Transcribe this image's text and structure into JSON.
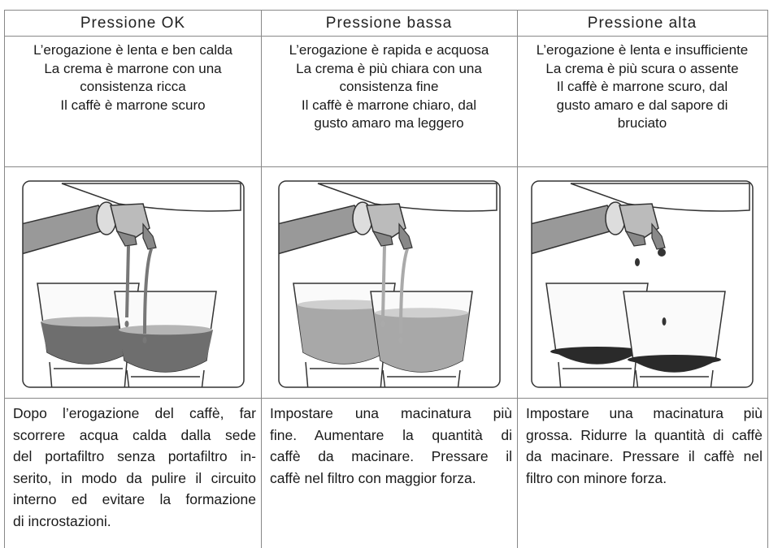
{
  "columns": [
    {
      "header": "Pressione OK",
      "description": [
        "L’erogazione è lenta e ben calda",
        "La crema è marrone con una",
        "consistenza ricca",
        "Il caffè è marrone scuro"
      ],
      "instructions": [
        "Dopo l’erogazione del caffè, far",
        "scorrere acqua calda dalla sede",
        "del portafiltro senza portafiltro in-",
        "serito, in modo da pulire il circuito",
        "interno ed evitare la formazione",
        "di incrostazioni."
      ]
    },
    {
      "header": "Pressione bassa",
      "description": [
        "L’erogazione è rapida e acquosa",
        "La crema è più chiara con una",
        "consistenza fine",
        "Il caffè è marrone chiaro, dal",
        "gusto amaro ma leggero"
      ],
      "instructions": [
        "Impostare una macinatura più",
        "fine. Aumentare la quantità di",
        "caffè da macinare. Pressare il",
        "caffè nel filtro con maggior forza."
      ]
    },
    {
      "header": "Pressione alta",
      "description": [
        "L’erogazione è lenta e insufficiente",
        "La crema è più scura o assente",
        "Il caffè è marrone scuro, dal",
        "gusto amaro e dal sapore di",
        "bruciato"
      ],
      "instructions": [
        "Impostare una macinatura più",
        "grossa. Ridurre la quantità di caffè",
        "da macinare. Pressare il caffè nel",
        "filtro con minore forza."
      ]
    }
  ]
}
